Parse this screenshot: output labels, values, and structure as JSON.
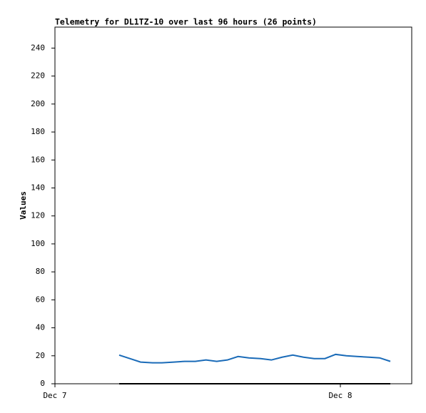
{
  "chart_data": {
    "type": "line",
    "title": "Telemetry for DL1TZ-10 over last 96 hours (26 points)",
    "y_label": "Values",
    "x": [
      5.4,
      6.3,
      7.2,
      8.2,
      9.0,
      10.0,
      10.9,
      11.8,
      12.7,
      13.6,
      14.5,
      15.4,
      16.3,
      17.3,
      18.2,
      19.1,
      20.0,
      20.9,
      21.8,
      22.7,
      23.6,
      24.5,
      25.4,
      26.4,
      27.3,
      28.2
    ],
    "series": [
      {
        "color": "#1a6bb8",
        "values": [
          20.5,
          18,
          15.5,
          15,
          15,
          15.5,
          16,
          16,
          17,
          16,
          17,
          19.5,
          18.5,
          18,
          17,
          19,
          20.5,
          19,
          18,
          18,
          21,
          20,
          19.5,
          19,
          18.5,
          16
        ]
      },
      {
        "color": "#000000",
        "values": [
          0,
          0,
          0,
          0,
          0,
          0,
          0,
          0,
          0,
          0,
          0,
          0,
          0,
          0,
          0,
          0,
          0,
          0,
          0,
          0,
          0,
          0,
          0,
          0,
          0,
          0
        ]
      }
    ],
    "xlim": [
      0,
      30
    ],
    "xticks": [
      {
        "value": 0,
        "label": "Dec 7"
      },
      {
        "value": 24,
        "label": "Dec 8"
      }
    ],
    "ylim": [
      0,
      255
    ],
    "yticks": [
      0,
      20,
      40,
      60,
      80,
      100,
      120,
      140,
      160,
      180,
      200,
      220,
      240
    ],
    "grid": false
  }
}
